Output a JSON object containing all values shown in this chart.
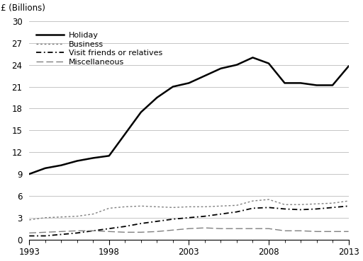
{
  "years": [
    1993,
    1994,
    1995,
    1996,
    1997,
    1998,
    1999,
    2000,
    2001,
    2002,
    2003,
    2004,
    2005,
    2006,
    2007,
    2008,
    2009,
    2010,
    2011,
    2012,
    2013
  ],
  "holiday": [
    9.0,
    9.8,
    10.2,
    10.8,
    11.2,
    11.5,
    14.5,
    17.5,
    19.5,
    21.0,
    21.5,
    22.5,
    23.5,
    24.0,
    25.0,
    24.2,
    21.5,
    21.5,
    21.2,
    21.2,
    23.8
  ],
  "business": [
    2.7,
    3.0,
    3.1,
    3.2,
    3.5,
    4.3,
    4.5,
    4.6,
    4.5,
    4.4,
    4.5,
    4.5,
    4.6,
    4.7,
    5.3,
    5.5,
    4.8,
    4.8,
    4.9,
    5.0,
    5.3
  ],
  "visit_friends": [
    0.5,
    0.5,
    0.7,
    0.9,
    1.2,
    1.5,
    1.8,
    2.2,
    2.5,
    2.8,
    3.0,
    3.2,
    3.5,
    3.8,
    4.3,
    4.4,
    4.2,
    4.1,
    4.2,
    4.4,
    4.6
  ],
  "miscellaneous": [
    0.9,
    1.0,
    1.1,
    1.2,
    1.2,
    1.1,
    1.0,
    1.0,
    1.1,
    1.3,
    1.5,
    1.6,
    1.5,
    1.5,
    1.5,
    1.5,
    1.2,
    1.2,
    1.1,
    1.1,
    1.1
  ],
  "ylabel_text": "£ (Billions)",
  "yticks": [
    0,
    3,
    6,
    9,
    12,
    15,
    18,
    21,
    24,
    27,
    30
  ],
  "xticks": [
    1993,
    1998,
    2003,
    2008,
    2013
  ],
  "ylim": [
    0,
    30
  ],
  "xlim": [
    1993,
    2013
  ],
  "legend_labels": [
    "Holiday",
    "Business",
    "Visit friends or relatives",
    "Miscellaneous"
  ],
  "background_color": "#ffffff",
  "grid_color": "#bbbbbb"
}
